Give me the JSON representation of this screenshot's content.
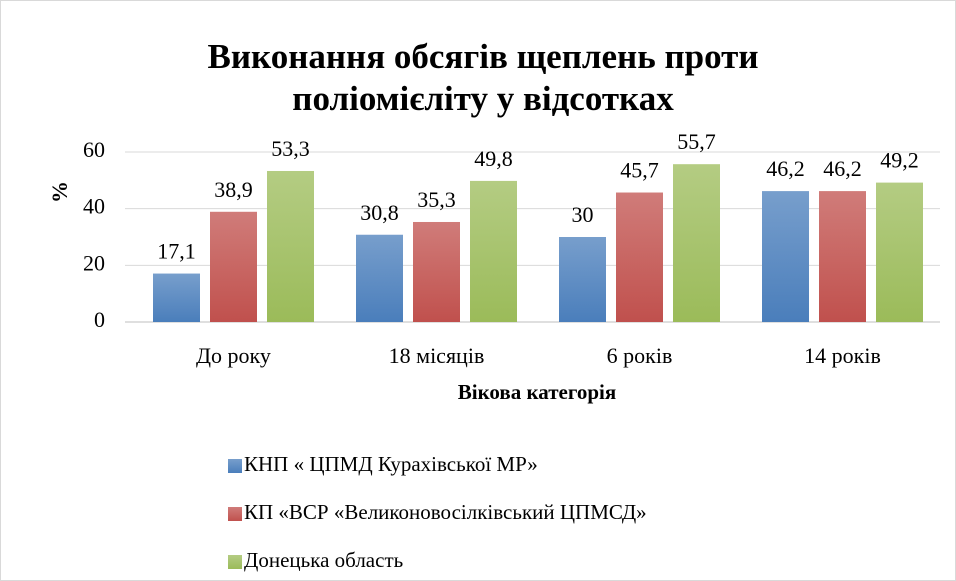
{
  "chart_data": {
    "type": "bar",
    "title": "Виконання обсягів щеплень проти поліомієліту у відсотках",
    "x_label": "Вікова категорія",
    "y_label": "%",
    "categories": [
      "До року",
      "18 місяців",
      "6 років",
      "14 років"
    ],
    "series": [
      {
        "name": "КНП « ЦПМД Кураxівської МР»",
        "color": "#4a7ebb",
        "values": [
          17.1,
          30.8,
          30,
          46.2
        ],
        "value_labels": [
          "17,1",
          "30,8",
          "30",
          "46,2"
        ]
      },
      {
        "name": "КП «ВСР «Великоновосілківський ЦПМСД»",
        "color": "#c0504d",
        "values": [
          38.9,
          35.3,
          45.7,
          46.2
        ],
        "value_labels": [
          "38,9",
          "35,3",
          "45,7",
          "46,2"
        ]
      },
      {
        "name": "Донецька область",
        "color": "#9bbb59",
        "values": [
          53.3,
          49.8,
          55.7,
          49.2
        ],
        "value_labels": [
          "53,3",
          "49,8",
          "55,7",
          "49,2"
        ]
      }
    ],
    "ylim": [
      0,
      70
    ],
    "yticks": [
      0,
      20,
      40,
      60
    ],
    "grid": true,
    "legend": "bottom"
  }
}
